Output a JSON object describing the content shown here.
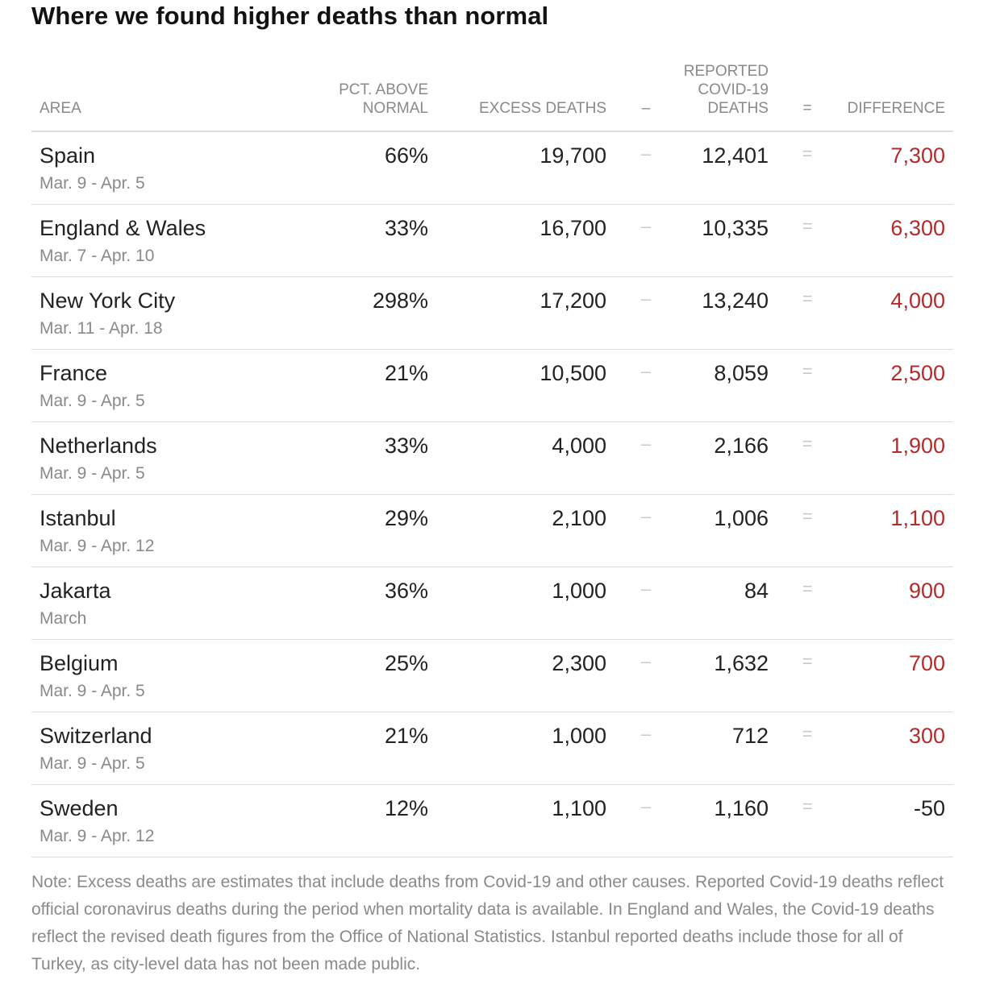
{
  "title": "Where we found higher deaths than normal",
  "columns": {
    "area": "AREA",
    "pct_line1": "PCT. ABOVE",
    "pct_line2": "NORMAL",
    "excess": "EXCESS DEATHS",
    "minus": "–",
    "reported_line1": "REPORTED",
    "reported_line2": "COVID-19",
    "reported_line3": "DEATHS",
    "equals": "=",
    "difference": "DIFFERENCE"
  },
  "colors": {
    "positive_difference": "#b42b2b",
    "text": "#222222",
    "muted": "#8a8a8a",
    "rule": "#dcdcdc"
  },
  "chart_data": {
    "type": "table",
    "title": "Where we found higher deaths than normal",
    "columns": [
      "AREA",
      "PCT. ABOVE NORMAL",
      "EXCESS DEATHS",
      "REPORTED COVID-19 DEATHS",
      "DIFFERENCE"
    ],
    "rows": [
      {
        "area": "Spain",
        "period": "Mar. 9 - Apr. 5",
        "pct": "66%",
        "excess": "19,700",
        "reported": "12,401",
        "difference": "7,300",
        "positive": true
      },
      {
        "area": "England & Wales",
        "period": "Mar. 7 - Apr. 10",
        "pct": "33%",
        "excess": "16,700",
        "reported": "10,335",
        "difference": "6,300",
        "positive": true
      },
      {
        "area": "New York City",
        "period": "Mar. 11 - Apr. 18",
        "pct": "298%",
        "excess": "17,200",
        "reported": "13,240",
        "difference": "4,000",
        "positive": true
      },
      {
        "area": "France",
        "period": "Mar. 9 - Apr. 5",
        "pct": "21%",
        "excess": "10,500",
        "reported": "8,059",
        "difference": "2,500",
        "positive": true
      },
      {
        "area": "Netherlands",
        "period": "Mar. 9 - Apr. 5",
        "pct": "33%",
        "excess": "4,000",
        "reported": "2,166",
        "difference": "1,900",
        "positive": true
      },
      {
        "area": "Istanbul",
        "period": "Mar. 9 - Apr. 12",
        "pct": "29%",
        "excess": "2,100",
        "reported": "1,006",
        "difference": "1,100",
        "positive": true
      },
      {
        "area": "Jakarta",
        "period": "March",
        "pct": "36%",
        "excess": "1,000",
        "reported": "84",
        "difference": "900",
        "positive": true
      },
      {
        "area": "Belgium",
        "period": "Mar. 9 - Apr. 5",
        "pct": "25%",
        "excess": "2,300",
        "reported": "1,632",
        "difference": "700",
        "positive": true
      },
      {
        "area": "Switzerland",
        "period": "Mar. 9 - Apr. 5",
        "pct": "21%",
        "excess": "1,000",
        "reported": "712",
        "difference": "300",
        "positive": true
      },
      {
        "area": "Sweden",
        "period": "Mar. 9 - Apr. 12",
        "pct": "12%",
        "excess": "1,100",
        "reported": "1,160",
        "difference": "-50",
        "positive": false
      }
    ]
  },
  "note": "Note: Excess deaths are estimates that include deaths from Covid-19 and other causes. Reported Covid-19 deaths reflect official coronavirus deaths during the period when mortality data is available. In England and Wales, the Covid-19 deaths reflect the revised death figures from the Office of National Statistics. Istanbul reported deaths include those for all of Turkey, as city-level data has not been made public."
}
